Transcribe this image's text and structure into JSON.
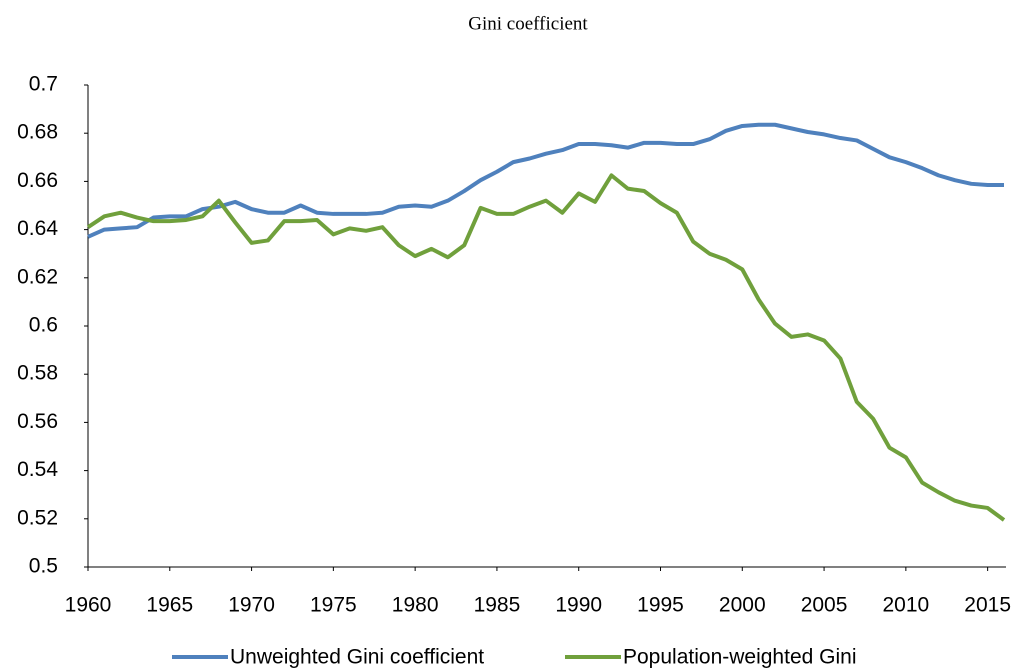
{
  "chart_data": {
    "type": "line",
    "title": "Gini coefficient",
    "x": [
      1960,
      1961,
      1962,
      1963,
      1964,
      1965,
      1966,
      1967,
      1968,
      1969,
      1970,
      1971,
      1972,
      1973,
      1974,
      1975,
      1976,
      1977,
      1978,
      1979,
      1980,
      1981,
      1982,
      1983,
      1984,
      1985,
      1986,
      1987,
      1988,
      1989,
      1990,
      1991,
      1992,
      1993,
      1994,
      1995,
      1996,
      1997,
      1998,
      1999,
      2000,
      2001,
      2002,
      2003,
      2004,
      2005,
      2006,
      2007,
      2008,
      2009,
      2010,
      2011,
      2012,
      2013,
      2014,
      2015,
      2016
    ],
    "series": [
      {
        "name": "Unweighted Gini coefficient",
        "color": "#4f81bd",
        "values": [
          0.637,
          0.64,
          0.6405,
          0.641,
          0.645,
          0.6455,
          0.6455,
          0.6485,
          0.6495,
          0.6515,
          0.6485,
          0.647,
          0.647,
          0.65,
          0.647,
          0.6465,
          0.6465,
          0.6465,
          0.647,
          0.6495,
          0.65,
          0.6495,
          0.652,
          0.656,
          0.6605,
          0.664,
          0.668,
          0.6695,
          0.6715,
          0.673,
          0.6755,
          0.6755,
          0.675,
          0.674,
          0.676,
          0.676,
          0.6755,
          0.6755,
          0.6775,
          0.681,
          0.683,
          0.6835,
          0.6835,
          0.682,
          0.6805,
          0.6795,
          0.678,
          0.677,
          0.6735,
          0.67,
          0.668,
          0.6655,
          0.6625,
          0.6605,
          0.659,
          0.6585,
          0.6585
        ]
      },
      {
        "name": "Population-weighted Gini",
        "color": "#70a03c",
        "values": [
          0.641,
          0.6455,
          0.647,
          0.645,
          0.6435,
          0.6435,
          0.644,
          0.6455,
          0.652,
          0.643,
          0.6345,
          0.6355,
          0.6435,
          0.6435,
          0.644,
          0.638,
          0.6405,
          0.6395,
          0.641,
          0.6335,
          0.629,
          0.632,
          0.6285,
          0.6335,
          0.649,
          0.6465,
          0.6465,
          0.6495,
          0.652,
          0.647,
          0.655,
          0.6515,
          0.6625,
          0.657,
          0.656,
          0.651,
          0.647,
          0.635,
          0.63,
          0.6275,
          0.6235,
          0.611,
          0.601,
          0.5955,
          0.5965,
          0.594,
          0.5865,
          0.5685,
          0.5615,
          0.5495,
          0.5455,
          0.535,
          0.531,
          0.5275,
          0.5255,
          0.5245,
          0.5195
        ]
      }
    ],
    "xlim": [
      1960,
      2016
    ],
    "xticks": [
      1960,
      1965,
      1970,
      1975,
      1980,
      1985,
      1990,
      1995,
      2000,
      2005,
      2010,
      2015
    ],
    "ylim": [
      0.5,
      0.7
    ],
    "yticks": [
      0.5,
      0.52,
      0.54,
      0.56,
      0.58,
      0.6,
      0.62,
      0.64,
      0.66,
      0.68,
      0.7
    ],
    "grid": false,
    "legend": "bottom"
  }
}
